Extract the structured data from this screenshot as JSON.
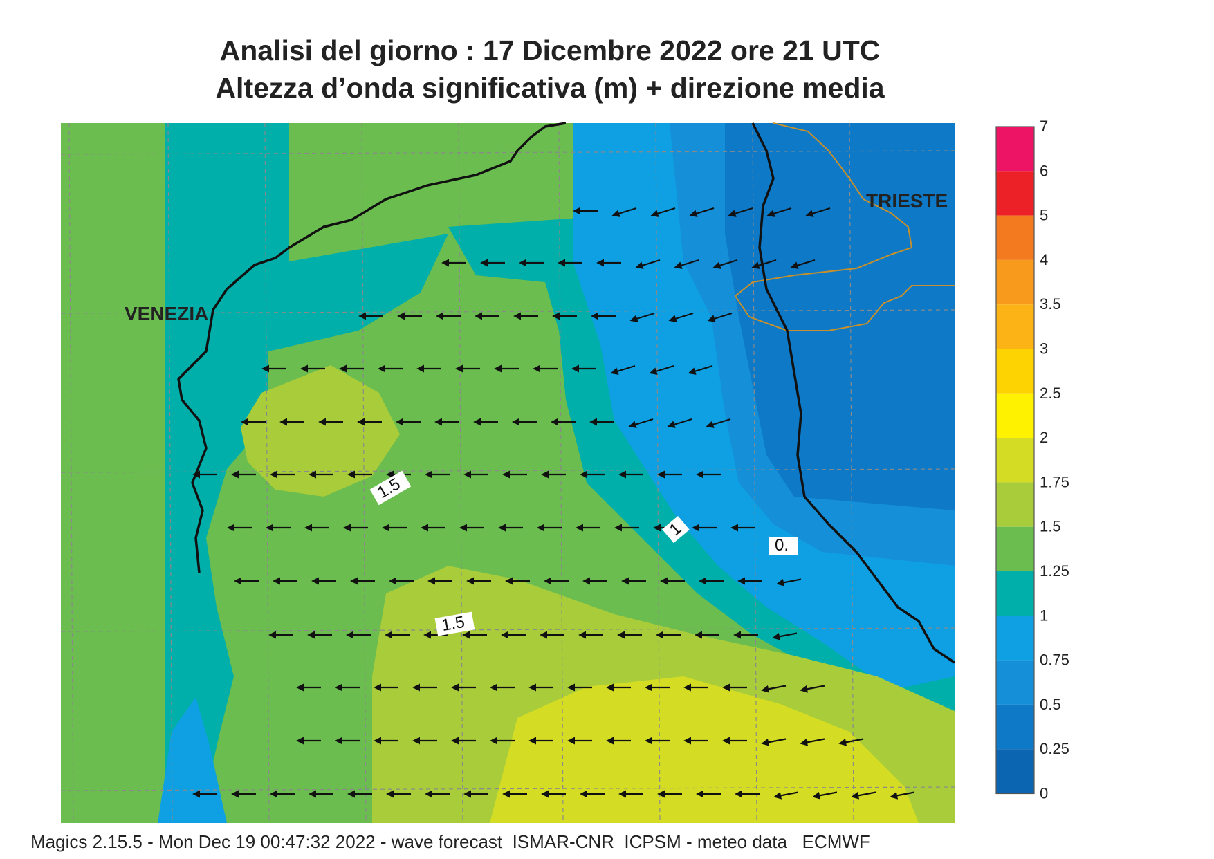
{
  "header": {
    "title_line1": "Analisi del giorno :  17 Dicembre  2022   ore 21 UTC",
    "title_line2": "Altezza d’onda significativa (m) + direzione media"
  },
  "map": {
    "city_labels": [
      "VENEZIA",
      "TRIESTE"
    ],
    "contour_labels": [
      "1.5",
      "1",
      "0.",
      "1.5"
    ],
    "land_color": "#cacaca",
    "coast_color": "#111111",
    "border_color": "#c8902a",
    "wave_direction": "westward, toward the Venetian coast",
    "zones": [
      {
        "hs": "0.25-0.5",
        "color": "#0d79c7"
      },
      {
        "hs": "0.5-0.75",
        "color": "#1590d8"
      },
      {
        "hs": "0.75-1",
        "color": "#0fa0e3"
      },
      {
        "hs": "1-1.25",
        "color": "#00aeaa"
      },
      {
        "hs": "1.25-1.5",
        "color": "#6abd4e"
      },
      {
        "hs": "1.5-1.75",
        "color": "#a9cc3b"
      },
      {
        "hs": "1.75-2",
        "color": "#d4dd24"
      }
    ]
  },
  "legend": {
    "labels": [
      "7",
      "6",
      "5",
      "4",
      "3.5",
      "3",
      "2.5",
      "2",
      "1.75",
      "1.5",
      "1.25",
      "1",
      "0.75",
      "0.5",
      "0.25",
      "0"
    ],
    "colors": [
      "#ed1466",
      "#ec2127",
      "#f47a20",
      "#f89a1c",
      "#fbb316",
      "#fdd302",
      "#fff200",
      "#d4dd24",
      "#a9cc3b",
      "#6abd4e",
      "#00aeaa",
      "#0fa0e3",
      "#1590d8",
      "#0d79c7",
      "#0b65b0"
    ]
  },
  "footer": {
    "text": "Magics 2.15.5 - Mon Dec 19 00:47:32 2022 - wave forecast  ISMAR-CNR  ICPSM - meteo data   ECMWF"
  }
}
